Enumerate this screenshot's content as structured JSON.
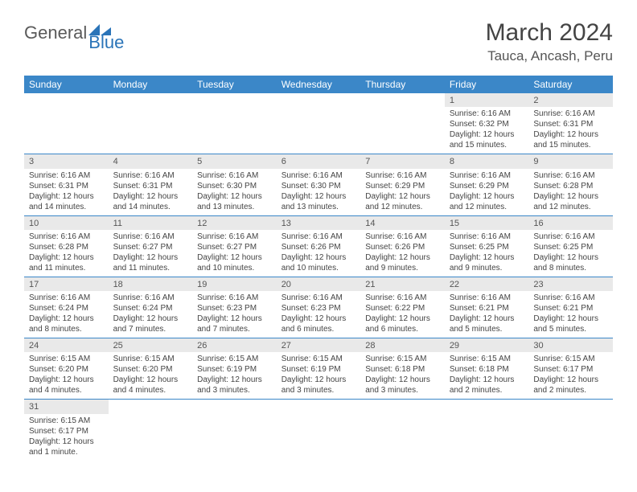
{
  "logo": {
    "word1": "General",
    "word2": "Blue"
  },
  "title": "March 2024",
  "location": "Tauca, Ancash, Peru",
  "colors": {
    "header_bg": "#3b87c8",
    "header_text": "#ffffff",
    "daynum_bg": "#e9e9e9",
    "text": "#444444",
    "cell_border": "#3b87c8",
    "logo_gray": "#5a5a5a",
    "logo_blue": "#2a74b8"
  },
  "weekdays": [
    "Sunday",
    "Monday",
    "Tuesday",
    "Wednesday",
    "Thursday",
    "Friday",
    "Saturday"
  ],
  "days": {
    "1": {
      "sr": "Sunrise: 6:16 AM",
      "ss": "Sunset: 6:32 PM",
      "dl1": "Daylight: 12 hours",
      "dl2": "and 15 minutes."
    },
    "2": {
      "sr": "Sunrise: 6:16 AM",
      "ss": "Sunset: 6:31 PM",
      "dl1": "Daylight: 12 hours",
      "dl2": "and 15 minutes."
    },
    "3": {
      "sr": "Sunrise: 6:16 AM",
      "ss": "Sunset: 6:31 PM",
      "dl1": "Daylight: 12 hours",
      "dl2": "and 14 minutes."
    },
    "4": {
      "sr": "Sunrise: 6:16 AM",
      "ss": "Sunset: 6:31 PM",
      "dl1": "Daylight: 12 hours",
      "dl2": "and 14 minutes."
    },
    "5": {
      "sr": "Sunrise: 6:16 AM",
      "ss": "Sunset: 6:30 PM",
      "dl1": "Daylight: 12 hours",
      "dl2": "and 13 minutes."
    },
    "6": {
      "sr": "Sunrise: 6:16 AM",
      "ss": "Sunset: 6:30 PM",
      "dl1": "Daylight: 12 hours",
      "dl2": "and 13 minutes."
    },
    "7": {
      "sr": "Sunrise: 6:16 AM",
      "ss": "Sunset: 6:29 PM",
      "dl1": "Daylight: 12 hours",
      "dl2": "and 12 minutes."
    },
    "8": {
      "sr": "Sunrise: 6:16 AM",
      "ss": "Sunset: 6:29 PM",
      "dl1": "Daylight: 12 hours",
      "dl2": "and 12 minutes."
    },
    "9": {
      "sr": "Sunrise: 6:16 AM",
      "ss": "Sunset: 6:28 PM",
      "dl1": "Daylight: 12 hours",
      "dl2": "and 12 minutes."
    },
    "10": {
      "sr": "Sunrise: 6:16 AM",
      "ss": "Sunset: 6:28 PM",
      "dl1": "Daylight: 12 hours",
      "dl2": "and 11 minutes."
    },
    "11": {
      "sr": "Sunrise: 6:16 AM",
      "ss": "Sunset: 6:27 PM",
      "dl1": "Daylight: 12 hours",
      "dl2": "and 11 minutes."
    },
    "12": {
      "sr": "Sunrise: 6:16 AM",
      "ss": "Sunset: 6:27 PM",
      "dl1": "Daylight: 12 hours",
      "dl2": "and 10 minutes."
    },
    "13": {
      "sr": "Sunrise: 6:16 AM",
      "ss": "Sunset: 6:26 PM",
      "dl1": "Daylight: 12 hours",
      "dl2": "and 10 minutes."
    },
    "14": {
      "sr": "Sunrise: 6:16 AM",
      "ss": "Sunset: 6:26 PM",
      "dl1": "Daylight: 12 hours",
      "dl2": "and 9 minutes."
    },
    "15": {
      "sr": "Sunrise: 6:16 AM",
      "ss": "Sunset: 6:25 PM",
      "dl1": "Daylight: 12 hours",
      "dl2": "and 9 minutes."
    },
    "16": {
      "sr": "Sunrise: 6:16 AM",
      "ss": "Sunset: 6:25 PM",
      "dl1": "Daylight: 12 hours",
      "dl2": "and 8 minutes."
    },
    "17": {
      "sr": "Sunrise: 6:16 AM",
      "ss": "Sunset: 6:24 PM",
      "dl1": "Daylight: 12 hours",
      "dl2": "and 8 minutes."
    },
    "18": {
      "sr": "Sunrise: 6:16 AM",
      "ss": "Sunset: 6:24 PM",
      "dl1": "Daylight: 12 hours",
      "dl2": "and 7 minutes."
    },
    "19": {
      "sr": "Sunrise: 6:16 AM",
      "ss": "Sunset: 6:23 PM",
      "dl1": "Daylight: 12 hours",
      "dl2": "and 7 minutes."
    },
    "20": {
      "sr": "Sunrise: 6:16 AM",
      "ss": "Sunset: 6:23 PM",
      "dl1": "Daylight: 12 hours",
      "dl2": "and 6 minutes."
    },
    "21": {
      "sr": "Sunrise: 6:16 AM",
      "ss": "Sunset: 6:22 PM",
      "dl1": "Daylight: 12 hours",
      "dl2": "and 6 minutes."
    },
    "22": {
      "sr": "Sunrise: 6:16 AM",
      "ss": "Sunset: 6:21 PM",
      "dl1": "Daylight: 12 hours",
      "dl2": "and 5 minutes."
    },
    "23": {
      "sr": "Sunrise: 6:16 AM",
      "ss": "Sunset: 6:21 PM",
      "dl1": "Daylight: 12 hours",
      "dl2": "and 5 minutes."
    },
    "24": {
      "sr": "Sunrise: 6:15 AM",
      "ss": "Sunset: 6:20 PM",
      "dl1": "Daylight: 12 hours",
      "dl2": "and 4 minutes."
    },
    "25": {
      "sr": "Sunrise: 6:15 AM",
      "ss": "Sunset: 6:20 PM",
      "dl1": "Daylight: 12 hours",
      "dl2": "and 4 minutes."
    },
    "26": {
      "sr": "Sunrise: 6:15 AM",
      "ss": "Sunset: 6:19 PM",
      "dl1": "Daylight: 12 hours",
      "dl2": "and 3 minutes."
    },
    "27": {
      "sr": "Sunrise: 6:15 AM",
      "ss": "Sunset: 6:19 PM",
      "dl1": "Daylight: 12 hours",
      "dl2": "and 3 minutes."
    },
    "28": {
      "sr": "Sunrise: 6:15 AM",
      "ss": "Sunset: 6:18 PM",
      "dl1": "Daylight: 12 hours",
      "dl2": "and 3 minutes."
    },
    "29": {
      "sr": "Sunrise: 6:15 AM",
      "ss": "Sunset: 6:18 PM",
      "dl1": "Daylight: 12 hours",
      "dl2": "and 2 minutes."
    },
    "30": {
      "sr": "Sunrise: 6:15 AM",
      "ss": "Sunset: 6:17 PM",
      "dl1": "Daylight: 12 hours",
      "dl2": "and 2 minutes."
    },
    "31": {
      "sr": "Sunrise: 6:15 AM",
      "ss": "Sunset: 6:17 PM",
      "dl1": "Daylight: 12 hours",
      "dl2": "and 1 minute."
    }
  },
  "grid": [
    [
      null,
      null,
      null,
      null,
      null,
      "1",
      "2"
    ],
    [
      "3",
      "4",
      "5",
      "6",
      "7",
      "8",
      "9"
    ],
    [
      "10",
      "11",
      "12",
      "13",
      "14",
      "15",
      "16"
    ],
    [
      "17",
      "18",
      "19",
      "20",
      "21",
      "22",
      "23"
    ],
    [
      "24",
      "25",
      "26",
      "27",
      "28",
      "29",
      "30"
    ],
    [
      "31",
      null,
      null,
      null,
      null,
      null,
      null
    ]
  ]
}
